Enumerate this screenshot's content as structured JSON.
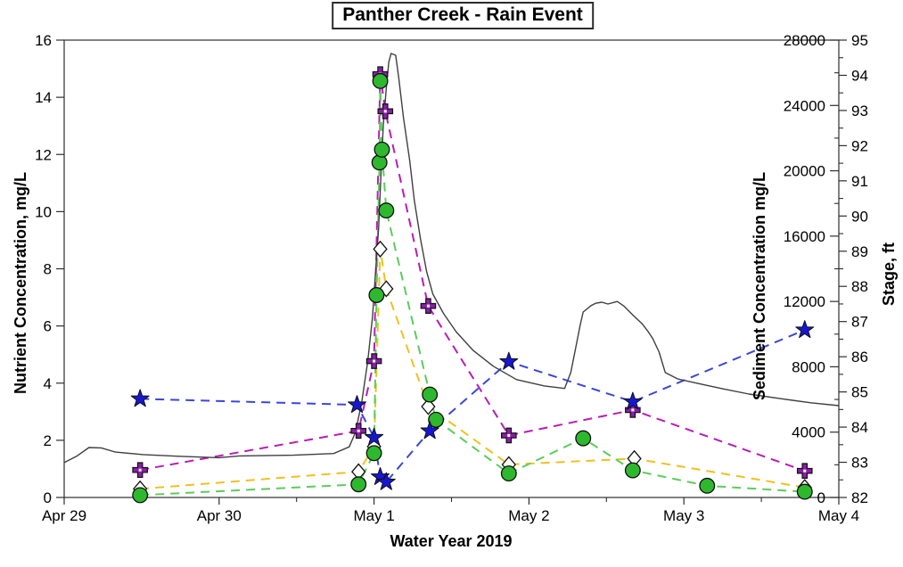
{
  "chart_data": {
    "type": "line",
    "title": "Panther Creek - Rain Event",
    "xlabel": "Water Year 2019",
    "axes": {
      "x": {
        "tick_labels": [
          "Apr 29",
          "Apr 30",
          "May 1",
          "May 2",
          "May 3",
          "May 4"
        ],
        "tick_days": [
          0,
          1,
          2,
          3,
          4,
          5
        ],
        "minor_interval_days": 0.5,
        "range_days": [
          0,
          5
        ]
      },
      "left": {
        "label": "Nutrient Concentration, mg/L",
        "ticks": [
          0,
          2,
          4,
          6,
          8,
          10,
          12,
          14,
          16
        ],
        "range": [
          0,
          16
        ]
      },
      "sediment": {
        "label": "Sediment Concentration mg/L",
        "ticks": [
          0,
          4000,
          8000,
          12000,
          16000,
          20000,
          24000,
          28000
        ],
        "minor_interval": 2000,
        "range": [
          0,
          28000
        ]
      },
      "stage": {
        "label": "Stage, ft",
        "ticks": [
          82,
          83,
          84,
          85,
          86,
          87,
          88,
          89,
          90,
          91,
          92,
          93,
          94,
          95
        ],
        "minor_interval": 0.5,
        "range": [
          82,
          95
        ]
      }
    },
    "series": [
      {
        "id": "stage-line",
        "name": "stage hydrograph solid black line",
        "axis": "stage",
        "marker": "none",
        "line": "solid",
        "color": "#3f3f3f",
        "points": [
          [
            0,
            82.99
          ],
          [
            0.08,
            83.17
          ],
          [
            0.16,
            83.42
          ],
          [
            0.24,
            83.41
          ],
          [
            0.33,
            83.29
          ],
          [
            0.51,
            83.22
          ],
          [
            0.74,
            83.17
          ],
          [
            1.0,
            83.13
          ],
          [
            1.13,
            83.18
          ],
          [
            1.48,
            83.2
          ],
          [
            1.74,
            83.25
          ],
          [
            1.84,
            83.44
          ],
          [
            1.88,
            83.85
          ],
          [
            1.92,
            84.69
          ],
          [
            1.96,
            85.88
          ],
          [
            1.99,
            87.14
          ],
          [
            2.01,
            88.41
          ],
          [
            2.03,
            89.68
          ],
          [
            2.045,
            91.2
          ],
          [
            2.06,
            92.59
          ],
          [
            2.08,
            93.68
          ],
          [
            2.095,
            94.37
          ],
          [
            2.11,
            94.62
          ],
          [
            2.14,
            94.57
          ],
          [
            2.16,
            93.91
          ],
          [
            2.19,
            92.8
          ],
          [
            2.23,
            91.58
          ],
          [
            2.26,
            90.44
          ],
          [
            2.3,
            89.35
          ],
          [
            2.34,
            88.41
          ],
          [
            2.38,
            87.78
          ],
          [
            2.45,
            87.22
          ],
          [
            2.53,
            86.71
          ],
          [
            2.64,
            86.18
          ],
          [
            2.77,
            85.73
          ],
          [
            2.92,
            85.35
          ],
          [
            3.1,
            85.17
          ],
          [
            3.23,
            85.1
          ],
          [
            3.27,
            85.55
          ],
          [
            3.3,
            86.21
          ],
          [
            3.33,
            86.89
          ],
          [
            3.35,
            87.27
          ],
          [
            3.4,
            87.45
          ],
          [
            3.43,
            87.52
          ],
          [
            3.47,
            87.55
          ],
          [
            3.51,
            87.5
          ],
          [
            3.57,
            87.57
          ],
          [
            3.61,
            87.45
          ],
          [
            3.67,
            87.19
          ],
          [
            3.73,
            86.94
          ],
          [
            3.77,
            86.71
          ],
          [
            3.8,
            86.51
          ],
          [
            3.84,
            86.13
          ],
          [
            3.88,
            85.55
          ],
          [
            3.96,
            85.37
          ],
          [
            4.09,
            85.24
          ],
          [
            4.25,
            85.09
          ],
          [
            4.42,
            84.94
          ],
          [
            4.62,
            84.81
          ],
          [
            4.82,
            84.69
          ],
          [
            5.0,
            84.61
          ]
        ]
      },
      {
        "id": "purple-crosses",
        "name": "purple cross markers with magenta dashed line",
        "axis": "nutrient",
        "marker": "cross",
        "marker_color": "#8a1fa8",
        "line": "dashed",
        "color": "#b81cb8",
        "points": [
          [
            0.49,
            0.96
          ],
          [
            1.9,
            2.33
          ],
          [
            2.0,
            4.77
          ],
          [
            2.04,
            14.81
          ],
          [
            2.073,
            13.51
          ],
          [
            2.35,
            6.7
          ],
          [
            2.87,
            2.17
          ],
          [
            3.67,
            3.06
          ],
          [
            4.78,
            0.93
          ]
        ]
      },
      {
        "id": "white-diamonds",
        "name": "white diamond markers with yellow dashed line",
        "axis": "nutrient",
        "marker": "diamond",
        "marker_color": "#ffffff",
        "line": "dashed",
        "color": "#f0c11e",
        "points": [
          [
            0.49,
            0.3
          ],
          [
            1.9,
            0.9
          ],
          [
            2.0,
            1.78
          ],
          [
            2.04,
            8.69
          ],
          [
            2.079,
            7.3
          ],
          [
            2.35,
            3.18
          ],
          [
            2.87,
            1.15
          ],
          [
            3.68,
            1.36
          ],
          [
            4.78,
            0.35
          ]
        ]
      },
      {
        "id": "green-circles",
        "name": "green circle markers with green dashed line",
        "axis": "nutrient",
        "marker": "circle",
        "marker_color": "#2eb82e",
        "line": "dashed",
        "color": "#5ccc5c",
        "points": [
          [
            0.49,
            0.08
          ],
          [
            1.9,
            0.46
          ],
          [
            2.0,
            1.55
          ],
          [
            2.016,
            7.08
          ],
          [
            2.035,
            11.72
          ],
          [
            2.04,
            14.57
          ],
          [
            2.051,
            12.17
          ],
          [
            2.079,
            10.04
          ],
          [
            2.36,
            3.6
          ],
          [
            2.4,
            2.72
          ],
          [
            2.87,
            0.84
          ],
          [
            3.35,
            2.07
          ],
          [
            3.67,
            0.95
          ],
          [
            4.15,
            0.41
          ],
          [
            4.78,
            0.2
          ]
        ]
      },
      {
        "id": "blue-stars",
        "name": "blue star markers with blue dashed line",
        "axis": "nutrient",
        "marker": "star",
        "marker_color": "#1717d1",
        "line": "dashed",
        "color": "#3a46da",
        "points": [
          [
            0.49,
            3.45
          ],
          [
            1.89,
            3.24
          ],
          [
            2.0,
            2.1
          ],
          [
            2.04,
            0.72
          ],
          [
            2.079,
            0.54
          ],
          [
            2.36,
            2.33
          ],
          [
            2.87,
            4.75
          ],
          [
            3.67,
            3.35
          ],
          [
            4.78,
            5.86
          ]
        ]
      }
    ]
  }
}
